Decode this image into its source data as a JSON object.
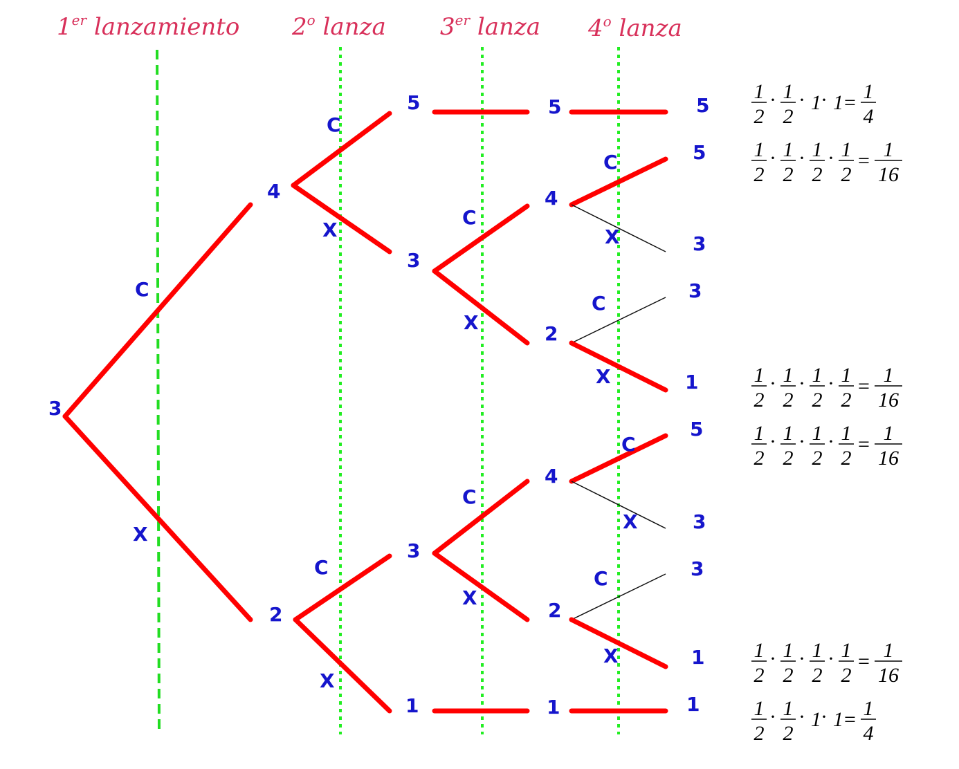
{
  "headers": [
    {
      "base": "1",
      "sup": "er",
      "text": " lanzamiento"
    },
    {
      "base": "2",
      "sup": "o",
      "text": " lanza"
    },
    {
      "base": "3",
      "sup": "er",
      "text": " lanza"
    },
    {
      "base": "4",
      "sup": "o",
      "text": " lanza"
    }
  ],
  "root": "3",
  "labels": {
    "up": "C",
    "down": "X"
  },
  "nodes": {
    "l1_top": "4",
    "l1_bot": "2",
    "l2_a": "5",
    "l2_b": "3",
    "l2_c": "3",
    "l2_d": "1",
    "l3_a": "5",
    "l3_b": "4",
    "l3_c": "2",
    "l3_d": "4",
    "l3_e": "2",
    "l3_f": "1"
  },
  "outcomes": [
    "5",
    "5",
    "3",
    "3",
    "1",
    "5",
    "3",
    "3",
    "1",
    "1"
  ],
  "probabilities": [
    {
      "factors": [
        "1/2",
        "1/2",
        "1",
        "1"
      ],
      "result": "1/4"
    },
    {
      "factors": [
        "1/2",
        "1/2",
        "1/2",
        "1/2"
      ],
      "result": "1/16"
    },
    {
      "factors": [
        "1/2",
        "1/2",
        "1/2",
        "1/2"
      ],
      "result": "1/16"
    },
    {
      "factors": [
        "1/2",
        "1/2",
        "1/2",
        "1/2"
      ],
      "result": "1/16"
    },
    {
      "factors": [
        "1/2",
        "1/2",
        "1/2",
        "1/2"
      ],
      "result": "1/16"
    },
    {
      "factors": [
        "1/2",
        "1/2",
        "1",
        "1"
      ],
      "result": "1/4"
    }
  ],
  "colors": {
    "branch": "#ff0000",
    "guide": "#22ee22",
    "node_label": "#1515cc",
    "header": "#d8305a"
  }
}
